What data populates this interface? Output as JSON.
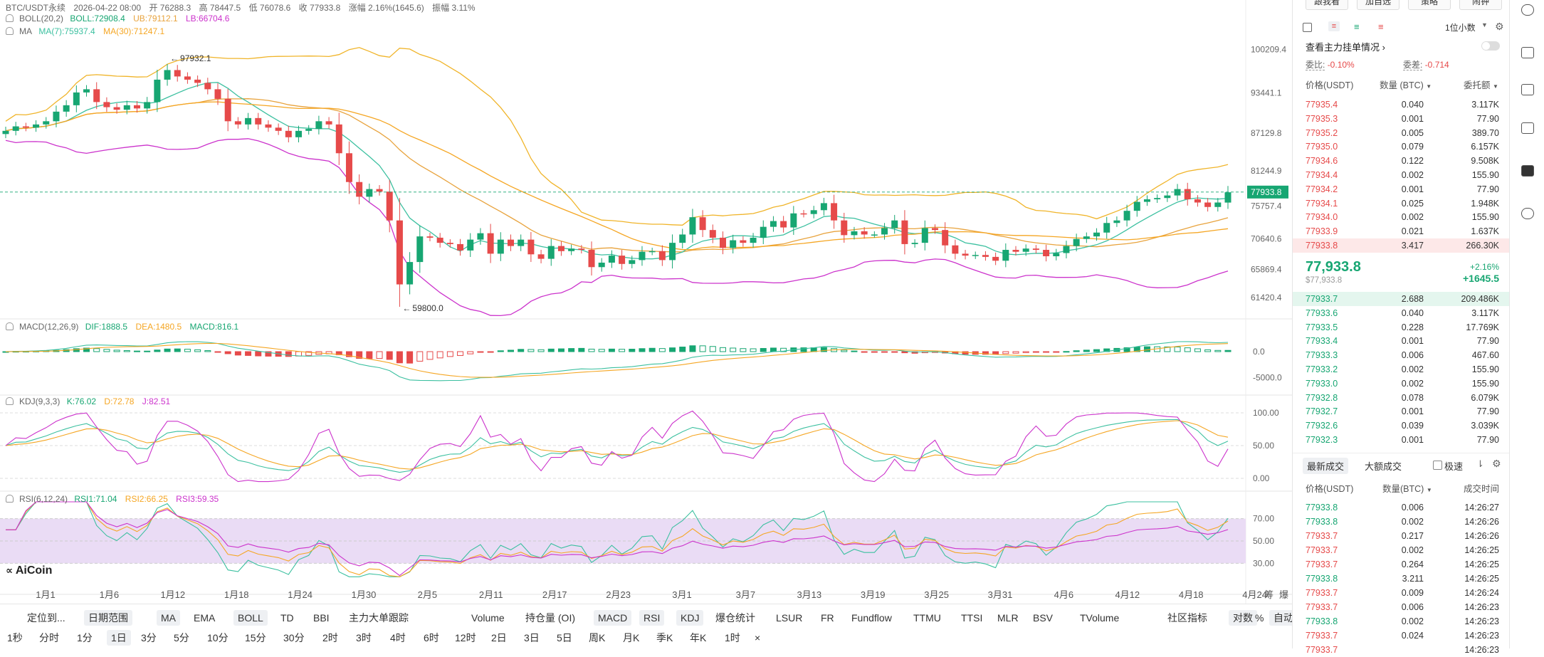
{
  "header": {
    "symbol": "BTC/USDT永续",
    "datetime": "2026-04-22 08:00",
    "open": "开 76288.3",
    "high": "高 78447.5",
    "low": "低 76078.6",
    "close": "收 77933.8",
    "change": "涨幅 2.16%(1645.6)",
    "amplitude": "振幅 3.11%"
  },
  "indicators": {
    "boll": {
      "name": "BOLL(20,2)",
      "boll": "BOLL:72908.4",
      "ub": "UB:79112.1",
      "lb": "LB:66704.6"
    },
    "ma": {
      "name": "MA",
      "ma7": "MA(7):75937.4",
      "ma30": "MA(30):71247.1"
    },
    "macd": {
      "name": "MACD(12,26,9)",
      "dif": "DIF:1888.5",
      "dea": "DEA:1480.5",
      "macd": "MACD:816.1"
    },
    "kdj": {
      "name": "KDJ(9,3,3)",
      "k": "K:76.02",
      "d": "D:72.78",
      "j": "J:82.51"
    },
    "rsi": {
      "name": "RSI(6,12,24)",
      "rsi1": "RSI1:71.04",
      "rsi2": "RSI2:66.25",
      "rsi3": "RSI3:59.35"
    }
  },
  "colors": {
    "up": "#17a672",
    "down": "#e64a4a",
    "boll_mid": "#e8a33d",
    "boll_band": "#f0b429",
    "lb": "#cc33cc",
    "ma7": "#3cc0a0",
    "ma30": "#f5a623"
  },
  "chart_data": {
    "type": "candlestick",
    "main_price_axis": [
      "100209.4",
      "93441.1",
      "87129.8",
      "81244.9",
      "75757.4",
      "70640.6",
      "65869.4",
      "61420.4"
    ],
    "price_ylim": [
      59000,
      103500
    ],
    "last_price_label": "77933.8",
    "max_label": "97932.1",
    "min_label": "59800.0",
    "x_ticks": [
      "1月1",
      "1月6",
      "1月12",
      "1月18",
      "1月24",
      "1月30",
      "2月5",
      "2月11",
      "2月17",
      "2月23",
      "3月1",
      "3月7",
      "3月13",
      "3月19",
      "3月25",
      "3月31",
      "4月6",
      "4月12",
      "4月18",
      "4月24"
    ],
    "macd_axis": [
      "0.0",
      "-5000.0"
    ],
    "kdj_axis": [
      "100.00",
      "50.00",
      "0.00"
    ],
    "rsi_axis": [
      "70.00",
      "50.00",
      "30.00"
    ],
    "closes": [
      87500,
      88200,
      88000,
      88500,
      89000,
      90500,
      91500,
      93500,
      94000,
      92000,
      91200,
      90800,
      91500,
      91000,
      92000,
      95500,
      97000,
      96000,
      95500,
      95000,
      94000,
      92500,
      89000,
      88500,
      89500,
      88500,
      88000,
      87500,
      86500,
      87500,
      87800,
      89000,
      88500,
      84000,
      79500,
      77200,
      78400,
      78000,
      73500,
      63500,
      67000,
      71000,
      70800,
      70000,
      69800,
      68800,
      70500,
      71500,
      68300,
      70500,
      69500,
      70500,
      68200,
      67500,
      69500,
      68700,
      69100,
      68900,
      66200,
      66900,
      68000,
      66700,
      67300,
      68600,
      68700,
      67300,
      70000,
      71300,
      74000,
      72000,
      70800,
      69200,
      70400,
      70000,
      70800,
      72500,
      73400,
      72400,
      74600,
      74500,
      75100,
      76200,
      73500,
      71200,
      71800,
      71300,
      71300,
      72300,
      73500,
      69800,
      70000,
      72300,
      72000,
      69600,
      68300,
      68000,
      68100,
      67800,
      67200,
      68900,
      68600,
      69100,
      68900,
      67900,
      68400,
      69500,
      70600,
      71000,
      71600,
      73100,
      73500,
      75000,
      76400,
      76800,
      77000,
      77400,
      78400,
      76800,
      76300,
      75600,
      76300,
      77900
    ],
    "opens": [
      87000,
      87500,
      88200,
      88000,
      88500,
      89000,
      90500,
      91500,
      93500,
      94000,
      92000,
      91200,
      90800,
      91500,
      91000,
      92000,
      95500,
      97000,
      96000,
      95500,
      95000,
      94000,
      92500,
      89000,
      88500,
      89500,
      88500,
      88000,
      87500,
      86500,
      87500,
      87800,
      89000,
      88500,
      84000,
      79500,
      77200,
      78400,
      78000,
      73500,
      63500,
      67000,
      71000,
      70800,
      70000,
      69800,
      68800,
      70500,
      71500,
      68300,
      70500,
      69500,
      70500,
      68200,
      67500,
      69500,
      68700,
      69100,
      68900,
      66200,
      66900,
      68000,
      66700,
      67300,
      68600,
      68700,
      67300,
      70000,
      71300,
      74000,
      72000,
      70800,
      69200,
      70400,
      70000,
      70800,
      72500,
      73400,
      72400,
      74600,
      74500,
      75100,
      76200,
      73500,
      71200,
      71800,
      71300,
      71300,
      72300,
      73500,
      69800,
      70000,
      72300,
      72000,
      69600,
      68300,
      68000,
      68100,
      67800,
      67200,
      68900,
      68600,
      69100,
      68900,
      67900,
      68400,
      69500,
      70600,
      71000,
      71600,
      73100,
      73500,
      75000,
      76400,
      76800,
      77000,
      77400,
      78400,
      76800,
      76300,
      75600,
      76288
    ]
  },
  "orderbook": {
    "tabs_top": [
      "跟我看",
      "加自选",
      "策略",
      "闹钟"
    ],
    "decimals": "1位小数",
    "depth_title": "查看主力挂单情况",
    "ratio_label": "委比:",
    "ratio_value": "-0.10%",
    "diff_label": "委差:",
    "diff_value": "-0.714",
    "col_price": "价格(USDT)",
    "col_qty": "数量 (BTC)",
    "col_total": "委托额",
    "asks": [
      {
        "p": "77935.4",
        "q": "0.040",
        "t": "3.117K"
      },
      {
        "p": "77935.3",
        "q": "0.001",
        "t": "77.90"
      },
      {
        "p": "77935.2",
        "q": "0.005",
        "t": "389.70"
      },
      {
        "p": "77935.0",
        "q": "0.079",
        "t": "6.157K"
      },
      {
        "p": "77934.6",
        "q": "0.122",
        "t": "9.508K"
      },
      {
        "p": "77934.4",
        "q": "0.002",
        "t": "155.90"
      },
      {
        "p": "77934.2",
        "q": "0.001",
        "t": "77.90"
      },
      {
        "p": "77934.1",
        "q": "0.025",
        "t": "1.948K"
      },
      {
        "p": "77934.0",
        "q": "0.002",
        "t": "155.90"
      },
      {
        "p": "77933.9",
        "q": "0.021",
        "t": "1.637K"
      },
      {
        "p": "77933.8",
        "q": "3.417",
        "t": "266.30K"
      }
    ],
    "last_price": "77,933.8",
    "last_price_sub": "$77,933.8",
    "last_change_pct": "+2.16%",
    "last_change_abs": "+1645.5",
    "bids": [
      {
        "p": "77933.7",
        "q": "2.688",
        "t": "209.486K"
      },
      {
        "p": "77933.6",
        "q": "0.040",
        "t": "3.117K"
      },
      {
        "p": "77933.5",
        "q": "0.228",
        "t": "17.769K"
      },
      {
        "p": "77933.4",
        "q": "0.001",
        "t": "77.90"
      },
      {
        "p": "77933.3",
        "q": "0.006",
        "t": "467.60"
      },
      {
        "p": "77933.2",
        "q": "0.002",
        "t": "155.90"
      },
      {
        "p": "77933.0",
        "q": "0.002",
        "t": "155.90"
      },
      {
        "p": "77932.8",
        "q": "0.078",
        "t": "6.079K"
      },
      {
        "p": "77932.7",
        "q": "0.001",
        "t": "77.90"
      },
      {
        "p": "77932.6",
        "q": "0.039",
        "t": "3.039K"
      },
      {
        "p": "77932.3",
        "q": "0.001",
        "t": "77.90"
      }
    ]
  },
  "trades": {
    "tab_latest": "最新成交",
    "tab_large": "大额成交",
    "fast": "极速",
    "col_price": "价格(USDT)",
    "col_qty": "数量(BTC)",
    "col_time": "成交时间",
    "rows": [
      {
        "p": "77933.8",
        "q": "0.006",
        "t": "14:26:27",
        "side": "buy"
      },
      {
        "p": "77933.8",
        "q": "0.002",
        "t": "14:26:26",
        "side": "buy"
      },
      {
        "p": "77933.7",
        "q": "0.217",
        "t": "14:26:26",
        "side": "sell"
      },
      {
        "p": "77933.7",
        "q": "0.002",
        "t": "14:26:25",
        "side": "sell"
      },
      {
        "p": "77933.7",
        "q": "0.264",
        "t": "14:26:25",
        "side": "sell"
      },
      {
        "p": "77933.8",
        "q": "3.211",
        "t": "14:26:25",
        "side": "buy"
      },
      {
        "p": "77933.7",
        "q": "0.009",
        "t": "14:26:24",
        "side": "sell"
      },
      {
        "p": "77933.7",
        "q": "0.006",
        "t": "14:26:23",
        "side": "sell"
      },
      {
        "p": "77933.8",
        "q": "0.002",
        "t": "14:26:23",
        "side": "buy"
      },
      {
        "p": "77933.7",
        "q": "0.024",
        "t": "14:26:23",
        "side": "sell"
      },
      {
        "p": "77933.7",
        "q": "",
        "t": "14:26:23",
        "side": "sell"
      }
    ]
  },
  "toolbar": {
    "row1": [
      "定位到...",
      "日期范围",
      "MA",
      "EMA",
      "BOLL",
      "TD",
      "BBI",
      "主力大单跟踪",
      "Volume",
      "持仓量 (OI)",
      "MACD",
      "RSI",
      "KDJ",
      "爆仓统计",
      "LSUR",
      "FR",
      "Fundflow",
      "TTMU",
      "TTSI",
      "MLR",
      "BSV",
      "TVolume",
      "社区指标",
      "对数",
      "%",
      "自动"
    ],
    "row2": [
      "1秒",
      "分时",
      "1分",
      "1日",
      "3分",
      "5分",
      "10分",
      "15分",
      "30分",
      "2时",
      "3时",
      "4时",
      "6时",
      "12时",
      "2日",
      "3日",
      "5日",
      "周K",
      "月K",
      "季K",
      "年K",
      "1时",
      "×"
    ],
    "axis_extra": [
      "筹",
      "爆"
    ]
  },
  "logo": "AiCoin"
}
